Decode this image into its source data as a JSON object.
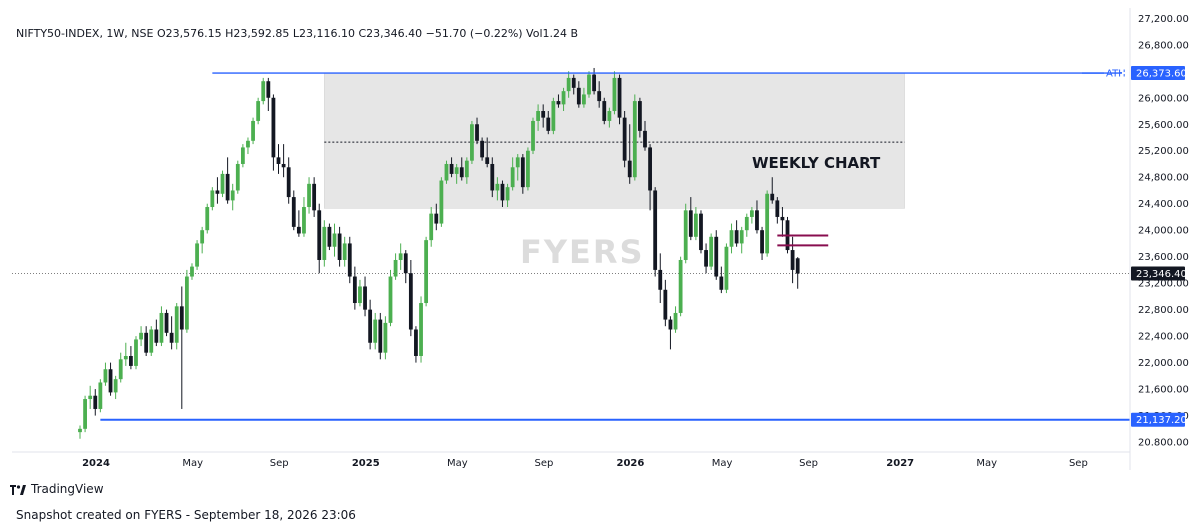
{
  "header": {
    "legend": "NIFTY50-INDEX, 1W, NSE  O23,576.15  H23,592.85  L23,116.10  C23,346.40  −51.70 (−0.22%)  Vol1.24 B"
  },
  "watermark": "FYERS",
  "footer": {
    "brand": "TradingView",
    "snapshot": "Snapshot created on FYERS - September 18, 2026 23:06"
  },
  "chart_data": {
    "type": "candlestick",
    "ylim": [
      20650,
      27250
    ],
    "y_ticks": [
      {
        "v": 27200,
        "label": "27,200.00"
      },
      {
        "v": 26800,
        "label": "26,800.00"
      },
      {
        "v": 26000,
        "label": "26,000.00"
      },
      {
        "v": 25600,
        "label": "25,600.00"
      },
      {
        "v": 25200,
        "label": "25,200.00"
      },
      {
        "v": 24800,
        "label": "24,800.00"
      },
      {
        "v": 24400,
        "label": "24,400.00"
      },
      {
        "v": 24000,
        "label": "24,000.00"
      },
      {
        "v": 23600,
        "label": "23,600.00"
      },
      {
        "v": 23200,
        "label": "23,200.00"
      },
      {
        "v": 22800,
        "label": "22,800.00"
      },
      {
        "v": 22400,
        "label": "22,400.00"
      },
      {
        "v": 22000,
        "label": "22,000.00"
      },
      {
        "v": 21600,
        "label": "21,600.00"
      },
      {
        "v": 21200,
        "label": "21,200.00"
      },
      {
        "v": 20800,
        "label": "20.800.00"
      }
    ],
    "x_ticks": [
      {
        "week": 0,
        "label": "2024",
        "bold": true
      },
      {
        "week": 19,
        "label": "May",
        "bold": false
      },
      {
        "week": 36,
        "label": "Sep",
        "bold": false
      },
      {
        "week": 53,
        "label": "2025",
        "bold": true
      },
      {
        "week": 71,
        "label": "May",
        "bold": false
      },
      {
        "week": 88,
        "label": "Sep",
        "bold": false
      },
      {
        "week": 105,
        "label": "2026",
        "bold": true
      },
      {
        "week": 123,
        "label": "May",
        "bold": false
      },
      {
        "week": 140,
        "label": "Sep",
        "bold": false
      },
      {
        "week": 158,
        "label": "2027",
        "bold": true
      },
      {
        "week": 175,
        "label": "May",
        "bold": false
      },
      {
        "week": 193,
        "label": "Sep",
        "bold": false
      }
    ],
    "candles": [
      [
        20950,
        21050,
        20850,
        21000
      ],
      [
        21000,
        21500,
        20950,
        21450
      ],
      [
        21450,
        21650,
        21300,
        21500
      ],
      [
        21500,
        21600,
        21200,
        21300
      ],
      [
        21300,
        21750,
        21250,
        21700
      ],
      [
        21700,
        22000,
        21650,
        21900
      ],
      [
        21900,
        22000,
        21500,
        21550
      ],
      [
        21550,
        21800,
        21450,
        21750
      ],
      [
        21750,
        22150,
        21700,
        22050
      ],
      [
        22050,
        22300,
        21950,
        22100
      ],
      [
        22100,
        22250,
        21900,
        21950
      ],
      [
        21950,
        22400,
        21900,
        22350
      ],
      [
        22350,
        22550,
        22250,
        22450
      ],
      [
        22450,
        22550,
        22100,
        22150
      ],
      [
        22150,
        22550,
        22100,
        22500
      ],
      [
        22500,
        22650,
        22250,
        22300
      ],
      [
        22300,
        22850,
        22250,
        22750
      ],
      [
        22750,
        22800,
        22400,
        22450
      ],
      [
        22450,
        22700,
        22200,
        22300
      ],
      [
        22300,
        22900,
        22200,
        22850
      ],
      [
        22850,
        23150,
        21300,
        22500
      ],
      [
        22500,
        23400,
        22450,
        23300
      ],
      [
        23300,
        23500,
        23250,
        23450
      ],
      [
        23450,
        23850,
        23400,
        23800
      ],
      [
        23800,
        24050,
        23650,
        24000
      ],
      [
        24000,
        24400,
        23950,
        24350
      ],
      [
        24350,
        24650,
        24300,
        24600
      ],
      [
        24600,
        24800,
        24400,
        24550
      ],
      [
        24550,
        24900,
        24500,
        24850
      ],
      [
        24850,
        25100,
        24400,
        24450
      ],
      [
        24450,
        24700,
        24300,
        24600
      ],
      [
        24600,
        25050,
        24550,
        25000
      ],
      [
        25000,
        25300,
        24950,
        25250
      ],
      [
        25250,
        25400,
        25150,
        25350
      ],
      [
        25350,
        25700,
        25300,
        25650
      ],
      [
        25650,
        26000,
        25600,
        25950
      ],
      [
        25950,
        26300,
        25900,
        26250
      ],
      [
        26250,
        26300,
        25800,
        26000
      ],
      [
        26000,
        26050,
        24900,
        25100
      ],
      [
        25100,
        25300,
        24850,
        25000
      ],
      [
        25000,
        25300,
        24800,
        24950
      ],
      [
        24950,
        25100,
        24400,
        24500
      ],
      [
        24500,
        24600,
        24000,
        24050
      ],
      [
        24050,
        24300,
        23900,
        23950
      ],
      [
        23950,
        24500,
        23900,
        24350
      ],
      [
        24350,
        24800,
        24250,
        24700
      ],
      [
        24700,
        24800,
        24200,
        24300
      ],
      [
        24300,
        24400,
        23350,
        23550
      ],
      [
        23550,
        24150,
        23450,
        24050
      ],
      [
        24050,
        24100,
        23700,
        23750
      ],
      [
        23750,
        24100,
        23600,
        23950
      ],
      [
        23950,
        24050,
        23450,
        23550
      ],
      [
        23550,
        23900,
        23450,
        23800
      ],
      [
        23800,
        23900,
        23200,
        23300
      ],
      [
        23300,
        23450,
        22800,
        22900
      ],
      [
        22900,
        23250,
        22850,
        23150
      ],
      [
        23150,
        23300,
        22700,
        22800
      ],
      [
        22800,
        22950,
        22200,
        22300
      ],
      [
        22300,
        22750,
        22200,
        22650
      ],
      [
        22650,
        22750,
        22050,
        22150
      ],
      [
        22150,
        22700,
        22050,
        22600
      ],
      [
        22600,
        23400,
        22550,
        23300
      ],
      [
        23300,
        23650,
        23250,
        23550
      ],
      [
        23550,
        23800,
        23400,
        23650
      ],
      [
        23650,
        23700,
        23200,
        23350
      ],
      [
        23350,
        23550,
        22400,
        22500
      ],
      [
        22500,
        22550,
        22000,
        22100
      ],
      [
        22100,
        23000,
        22000,
        22900
      ],
      [
        22900,
        23900,
        22850,
        23850
      ],
      [
        23850,
        24350,
        23750,
        24250
      ],
      [
        24250,
        24400,
        24000,
        24100
      ],
      [
        24100,
        24800,
        24050,
        24750
      ],
      [
        24750,
        25050,
        24700,
        25000
      ],
      [
        25000,
        25100,
        24800,
        24850
      ],
      [
        24850,
        25000,
        24700,
        24950
      ],
      [
        24950,
        25100,
        24750,
        24800
      ],
      [
        24800,
        25100,
        24700,
        25050
      ],
      [
        25050,
        25650,
        25000,
        25600
      ],
      [
        25600,
        25700,
        25300,
        25350
      ],
      [
        25350,
        25400,
        25050,
        25100
      ],
      [
        25100,
        25400,
        24950,
        25000
      ],
      [
        25000,
        25100,
        24500,
        24600
      ],
      [
        24600,
        24800,
        24450,
        24700
      ],
      [
        24700,
        24750,
        24350,
        24450
      ],
      [
        24450,
        24700,
        24350,
        24650
      ],
      [
        24650,
        25100,
        24600,
        24950
      ],
      [
        24950,
        25150,
        24750,
        25100
      ],
      [
        25100,
        25150,
        24550,
        24650
      ],
      [
        24650,
        25250,
        24600,
        25200
      ],
      [
        25200,
        25700,
        25150,
        25650
      ],
      [
        25650,
        25900,
        25500,
        25800
      ],
      [
        25800,
        25900,
        25550,
        25700
      ],
      [
        25700,
        25800,
        25450,
        25500
      ],
      [
        25500,
        26000,
        25450,
        25950
      ],
      [
        25950,
        26050,
        25850,
        25900
      ],
      [
        25900,
        26150,
        25800,
        26100
      ],
      [
        26100,
        26400,
        26000,
        26300
      ],
      [
        26300,
        26350,
        26050,
        26150
      ],
      [
        26150,
        26250,
        25850,
        25900
      ],
      [
        25900,
        26150,
        25850,
        26050
      ],
      [
        26050,
        26400,
        26000,
        26350
      ],
      [
        26350,
        26450,
        26050,
        26100
      ],
      [
        26100,
        26250,
        25850,
        25950
      ],
      [
        25950,
        26000,
        25600,
        25650
      ],
      [
        25650,
        25850,
        25550,
        25800
      ],
      [
        25800,
        26400,
        25750,
        26300
      ],
      [
        26300,
        26350,
        25600,
        25700
      ],
      [
        25700,
        25800,
        24950,
        25050
      ],
      [
        25050,
        25600,
        24700,
        24800
      ],
      [
        24800,
        26050,
        24750,
        25950
      ],
      [
        25950,
        26000,
        25400,
        25500
      ],
      [
        25500,
        25650,
        25200,
        25250
      ],
      [
        25250,
        25300,
        24300,
        24600
      ],
      [
        24600,
        24650,
        23300,
        23400
      ],
      [
        23400,
        23650,
        22900,
        23100
      ],
      [
        23100,
        23250,
        22550,
        22650
      ],
      [
        22650,
        22700,
        22200,
        22500
      ],
      [
        22500,
        22850,
        22450,
        22750
      ],
      [
        22750,
        23600,
        22700,
        23550
      ],
      [
        23550,
        24400,
        23500,
        24300
      ],
      [
        24300,
        24500,
        23850,
        23900
      ],
      [
        23900,
        24350,
        23850,
        24250
      ],
      [
        24250,
        24300,
        23650,
        23700
      ],
      [
        23700,
        23800,
        23350,
        23450
      ],
      [
        23450,
        23950,
        23400,
        23900
      ],
      [
        23900,
        24000,
        23250,
        23300
      ],
      [
        23300,
        23450,
        23050,
        23100
      ],
      [
        23100,
        23800,
        23050,
        23750
      ],
      [
        23750,
        24100,
        23650,
        24000
      ],
      [
        24000,
        24150,
        23750,
        23800
      ],
      [
        23800,
        24050,
        23650,
        24000
      ],
      [
        24000,
        24250,
        23900,
        24200
      ],
      [
        24200,
        24350,
        24100,
        24300
      ],
      [
        24300,
        24450,
        23950,
        24000
      ],
      [
        24000,
        24050,
        23550,
        23650
      ],
      [
        23650,
        24600,
        23600,
        24550
      ],
      [
        24550,
        24800,
        24400,
        24450
      ],
      [
        24450,
        24500,
        24100,
        24200
      ],
      [
        24200,
        24350,
        23900,
        24150
      ],
      [
        24150,
        24200,
        23650,
        23700
      ],
      [
        23700,
        23900,
        23200,
        23400
      ],
      [
        23576,
        23593,
        23116,
        23346
      ]
    ],
    "reference_lines": [
      {
        "name": "ATH",
        "value": 26373.6,
        "label": "26,373.60",
        "from_week": 26
      },
      {
        "name": "support",
        "value": 21137.2,
        "label": "21,137.20",
        "from_week": 4
      }
    ],
    "current_price": {
      "value": 23346.4,
      "label": "23,346.40"
    },
    "zone": {
      "from_week": 48,
      "to_week": 162,
      "top": 26373.6,
      "bottom": 24330,
      "label": "WEEKLY CHART"
    },
    "mid_line": 25330,
    "maroon_lines": [
      {
        "from_week": 137,
        "to_week": 147,
        "value": 23920
      },
      {
        "from_week": 137,
        "to_week": 147,
        "value": 23770
      }
    ],
    "colors": {
      "up": "#4caf50",
      "down": "#131722",
      "ref_line": "#2962ff",
      "zone": "#e6e6e6",
      "maroon": "#880e4f",
      "label_bg": "#2962ff",
      "price_bg": "#131722"
    }
  }
}
